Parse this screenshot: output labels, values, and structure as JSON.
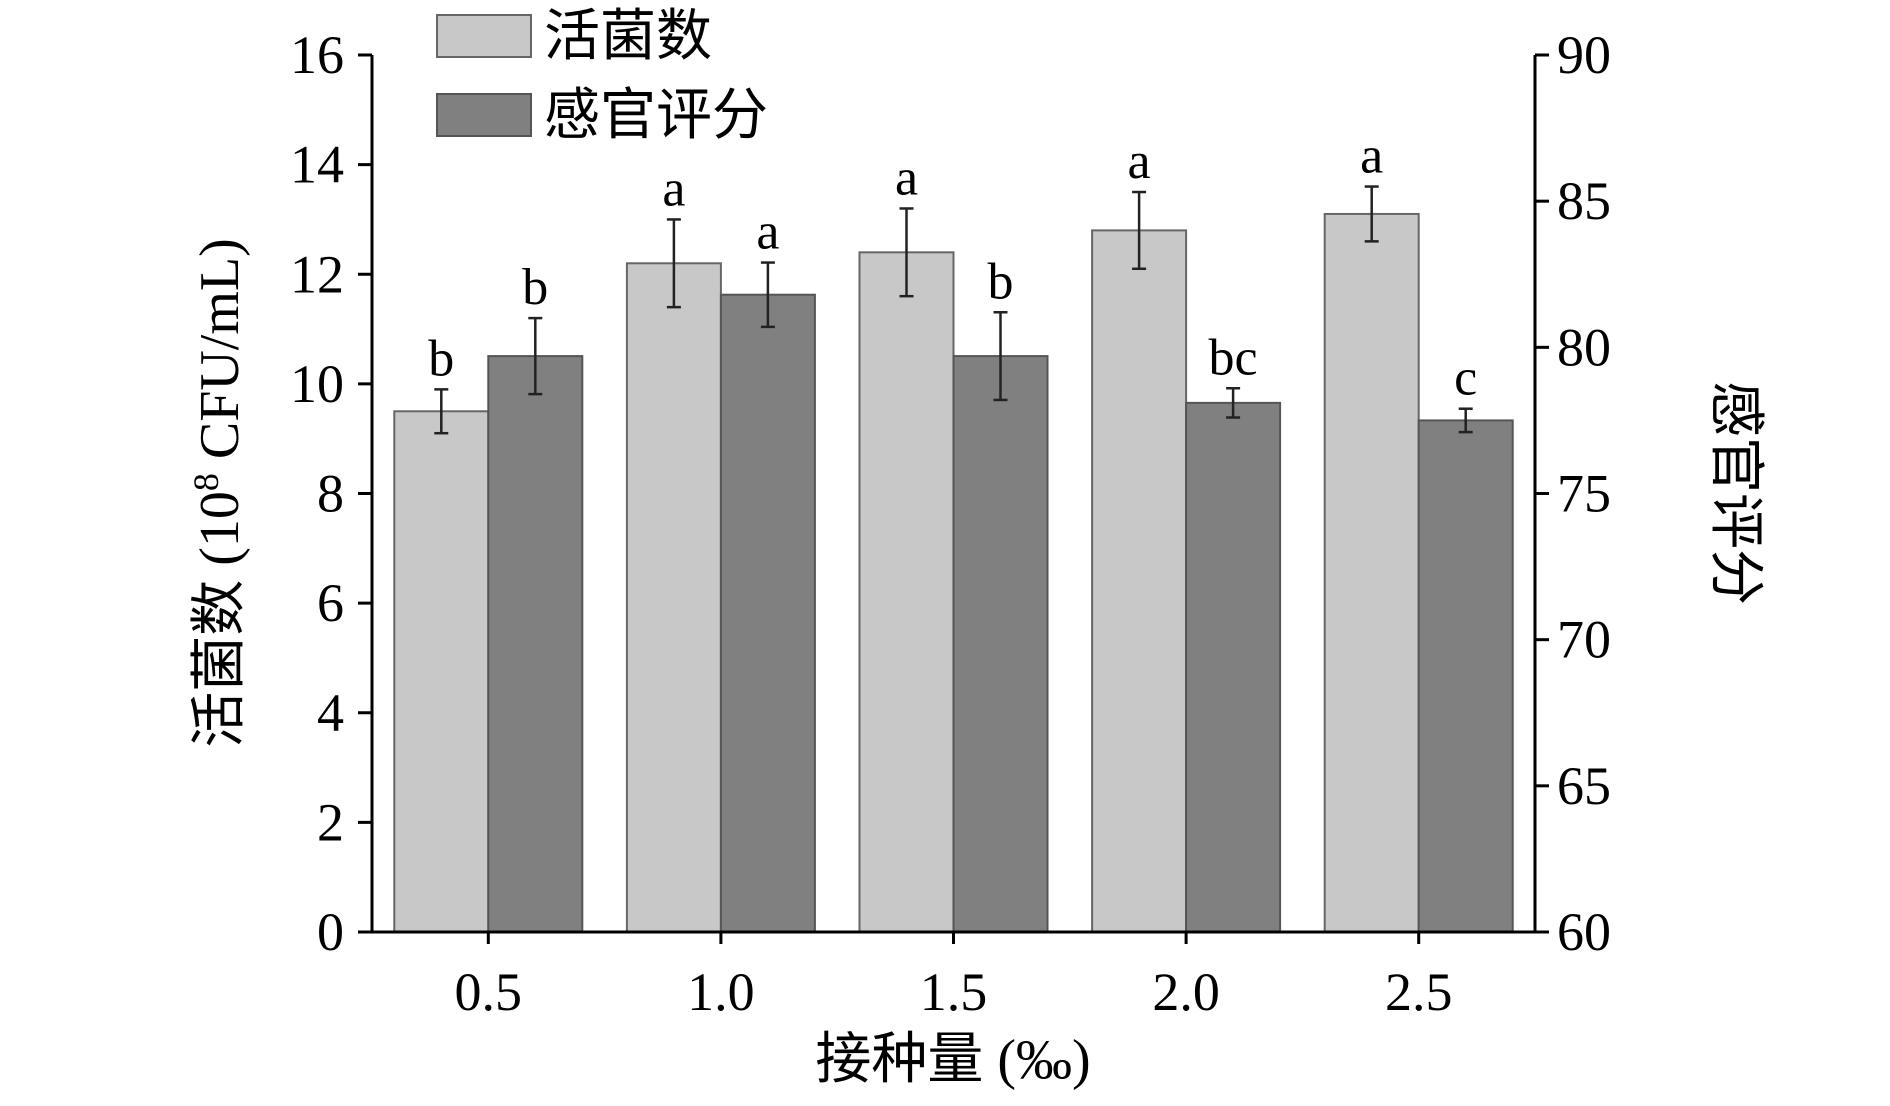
{
  "chart_data": {
    "type": "bar",
    "categories": [
      "0.5",
      "1.0",
      "1.5",
      "2.0",
      "2.5"
    ],
    "xlabel": "接种量 (‰)",
    "ylabel_left": {
      "prefix": "活菌数 (10",
      "sup": "8",
      "suffix": " CFU/mL)"
    },
    "ylabel_right": "感官评分",
    "ylim_left": [
      0,
      16
    ],
    "yticks_left": [
      0,
      2,
      4,
      6,
      8,
      10,
      12,
      14,
      16
    ],
    "ylim_right": [
      60,
      90
    ],
    "yticks_right": [
      60,
      65,
      70,
      75,
      80,
      85,
      90
    ],
    "grid": false,
    "legend_position": "top-left",
    "series": [
      {
        "name": "活菌数",
        "axis": "left",
        "color": "#c8c8c8",
        "values": [
          9.5,
          12.2,
          12.4,
          12.8,
          13.1
        ],
        "errors": [
          0.4,
          0.8,
          0.8,
          0.7,
          0.5
        ],
        "labels": [
          "b",
          "a",
          "a",
          "a",
          "a"
        ]
      },
      {
        "name": "感官评分",
        "axis": "right",
        "color": "#808080",
        "values": [
          79.7,
          81.8,
          79.7,
          78.1,
          77.5
        ],
        "errors": [
          1.3,
          1.1,
          1.5,
          0.5,
          0.4
        ],
        "labels": [
          "b",
          "a",
          "b",
          "bc",
          "c"
        ]
      }
    ]
  }
}
